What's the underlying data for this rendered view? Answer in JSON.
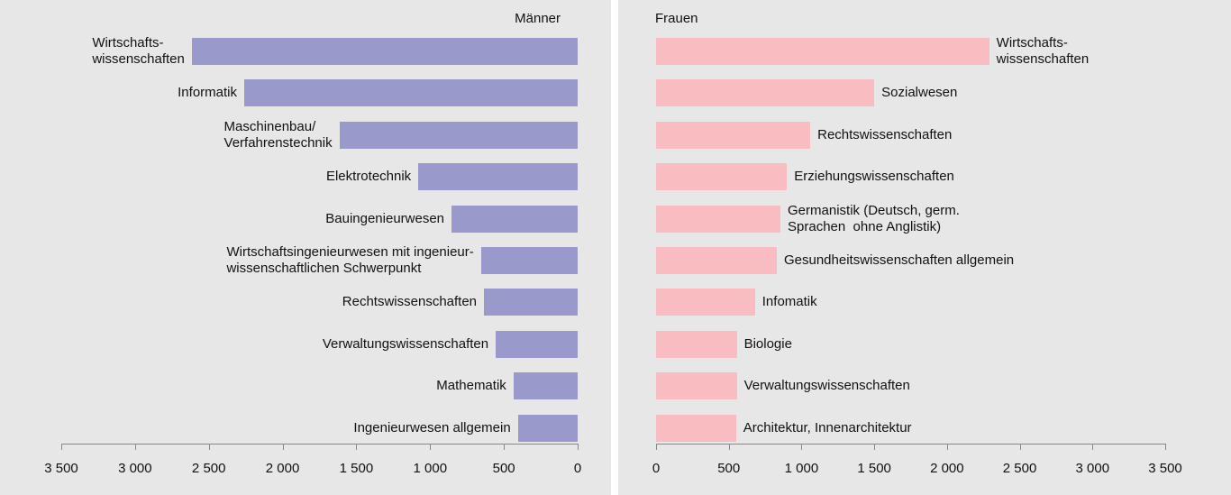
{
  "chart_data": [
    {
      "type": "bar",
      "orientation": "horizontal",
      "title": "Männer",
      "x_reversed": true,
      "color": "#9999cc",
      "categories": [
        "Wirtschafts-\nwissenschaften",
        "Informatik",
        "Maschinenbau/\nVerfahrenstechnik",
        "Elektrotechnik",
        "Bauingenieurwesen",
        "Wirtschaftsingenieurwesen mit ingenieur-\nwissenschaftlichen Schwerpunkt",
        "Rechtswissenschaften",
        "Verwaltungswissenschaften",
        "Mathematik",
        "Ingenieurwesen allgemein"
      ],
      "values": [
        2615,
        2260,
        1615,
        1080,
        855,
        655,
        635,
        555,
        435,
        405
      ],
      "xlim": [
        0,
        3500
      ],
      "xticks": [
        0,
        500,
        {
          "value": 1000,
          "label": "1 000"
        },
        {
          "value": 1500,
          "label": "1 500"
        },
        {
          "value": 2000,
          "label": "2 000"
        },
        {
          "value": 2500,
          "label": "2 500"
        },
        {
          "value": 3000,
          "label": "3 000"
        },
        {
          "value": 3500,
          "label": "3 500"
        }
      ]
    },
    {
      "type": "bar",
      "orientation": "horizontal",
      "title": "Frauen",
      "x_reversed": false,
      "color": "#f9bcc1",
      "categories": [
        "Wirtschafts-\nwissenschaften",
        "Sozialwesen",
        "Rechtswissenschaften",
        "Erziehungswissenschaften",
        "Germanistik (Deutsch, germ.\nSprachen  ohne Anglistik)",
        "Gesundheitswissenschaften allgemein",
        "Infomatik",
        "Biologie",
        "Verwaltungswissenschaften",
        "Architektur, Innenarchitektur"
      ],
      "values": [
        2290,
        1500,
        1060,
        900,
        855,
        830,
        680,
        555,
        555,
        550
      ],
      "xlim": [
        0,
        3500
      ],
      "xticks": [
        0,
        500,
        {
          "value": 1000,
          "label": "1 000"
        },
        {
          "value": 1500,
          "label": "1 500"
        },
        {
          "value": 2000,
          "label": "2 000"
        },
        {
          "value": 2500,
          "label": "2 500"
        },
        {
          "value": 3000,
          "label": "3 000"
        },
        {
          "value": 3500,
          "label": "3 500"
        }
      ]
    }
  ]
}
